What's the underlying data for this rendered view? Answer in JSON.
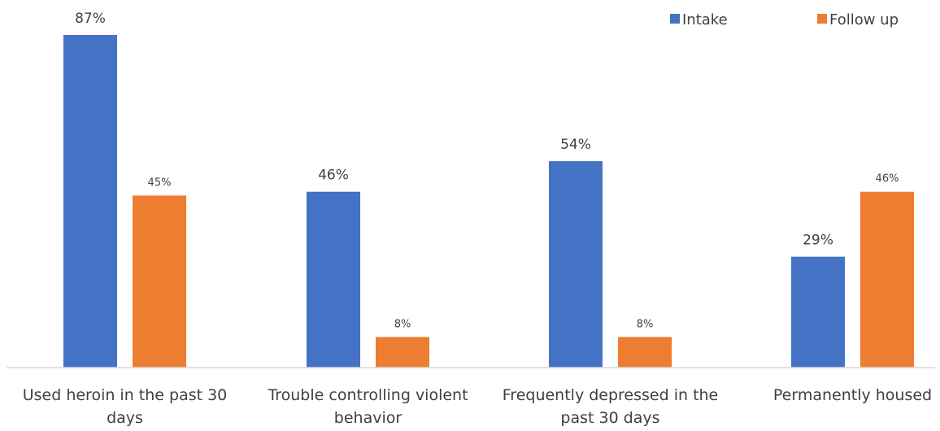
{
  "chart_data": {
    "type": "bar",
    "title": "",
    "xlabel": "",
    "ylabel": "",
    "ylim": [
      0,
      100
    ],
    "grid": false,
    "legend_position": "top-right",
    "categories": [
      [
        "Used heroin in the past 30",
        "days"
      ],
      [
        "Trouble controlling violent",
        "behavior"
      ],
      [
        "Frequently depressed in the",
        "past 30 days"
      ],
      [
        "Permanently housed"
      ]
    ],
    "series": [
      {
        "name": "Intake",
        "color": "#4472C4",
        "values": [
          87,
          46,
          54,
          29
        ],
        "labels": [
          "87%",
          "46%",
          "54%",
          "29%"
        ]
      },
      {
        "name": "Follow up",
        "color": "#ED7D31",
        "values": [
          45,
          8,
          8,
          46
        ],
        "labels": [
          "45%",
          "8%",
          "8%",
          "46%"
        ]
      }
    ]
  }
}
